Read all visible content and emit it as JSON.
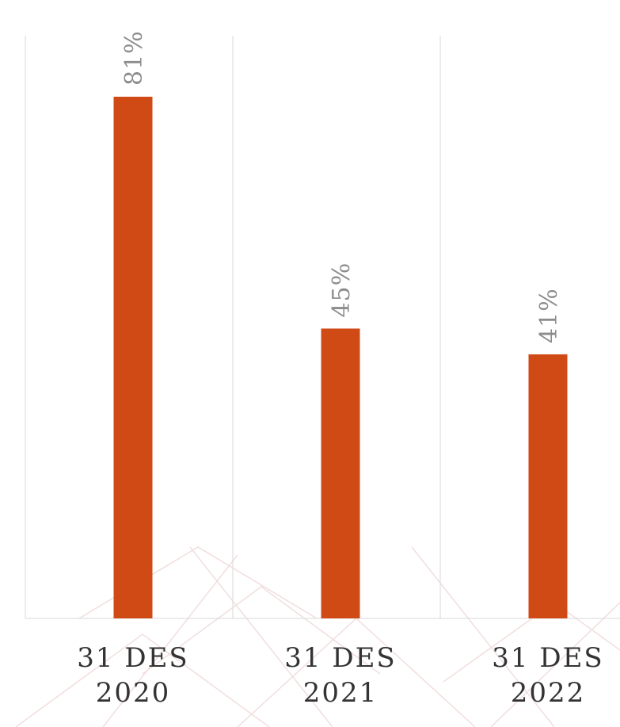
{
  "chart_data": {
    "type": "bar",
    "categories": [
      "31 DES 2020",
      "31 DES 2021",
      "31 DES 2022"
    ],
    "values": [
      81,
      45,
      41
    ],
    "value_labels": [
      "81%",
      "45%",
      "41%"
    ],
    "color": "#d04a16",
    "grid": true
  }
}
